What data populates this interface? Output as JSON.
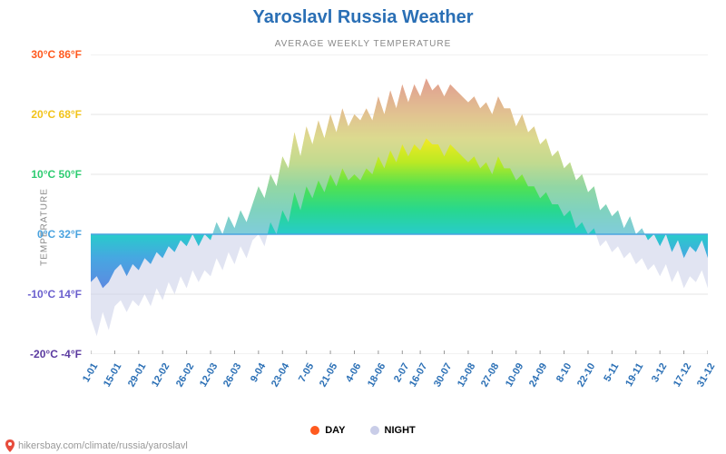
{
  "title": {
    "text": "Yaroslavl Russia Weather",
    "color": "#2a6fb5",
    "fontsize": 20,
    "fontweight": "600"
  },
  "subtitle": {
    "text": "AVERAGE WEEKLY TEMPERATURE",
    "color": "#888888",
    "fontsize": 10
  },
  "y_axis_title": {
    "text": "TEMPERATURE",
    "color": "#888888",
    "fontsize": 10
  },
  "attribution": {
    "text": "hikersbay.com/climate/russia/yaroslavl",
    "color": "#999999",
    "pin_color": "#e74c3c"
  },
  "legend": {
    "day": {
      "label": "DAY",
      "color": "#ff5a1f"
    },
    "night": {
      "label": "NIGHT",
      "color": "#c9cde8"
    }
  },
  "chart": {
    "type": "area",
    "background_color": "#ffffff",
    "gridline_color": "#e5e5e5",
    "zero_line_color": "#4aa3df",
    "night_fill_color": "#c9cde8",
    "y": {
      "min": -20,
      "max": 30,
      "tick_step": 10,
      "ticks": [
        {
          "c": 30,
          "label": "30°C 86°F",
          "color": "#ff5a1f"
        },
        {
          "c": 20,
          "label": "20°C 68°F",
          "color": "#f2c31b"
        },
        {
          "c": 10,
          "label": "10°C 50°F",
          "color": "#2ecc71"
        },
        {
          "c": 0,
          "label": "0°C 32°F",
          "color": "#4aa3df"
        },
        {
          "c": -10,
          "label": "-10°C 14°F",
          "color": "#6a5fce"
        },
        {
          "c": -20,
          "label": "-20°C -4°F",
          "color": "#5b3aa0"
        }
      ]
    },
    "x": {
      "labels": [
        "1-01",
        "15-01",
        "29-01",
        "12-02",
        "26-02",
        "12-03",
        "26-03",
        "9-04",
        "23-04",
        "7-05",
        "21-05",
        "4-06",
        "18-06",
        "2-07",
        "16-07",
        "30-07",
        "13-08",
        "27-08",
        "10-09",
        "24-09",
        "8-10",
        "22-10",
        "5-11",
        "19-11",
        "3-12",
        "17-12",
        "31-12"
      ],
      "label_color": "#2a6fb5",
      "label_fontsize": 11
    },
    "gradient_stops": [
      {
        "c": 28,
        "color": "#ff4d1a"
      },
      {
        "c": 24,
        "color": "#ff7a1f"
      },
      {
        "c": 20,
        "color": "#ffb21f"
      },
      {
        "c": 16,
        "color": "#f2e81b"
      },
      {
        "c": 12,
        "color": "#b8e81b"
      },
      {
        "c": 8,
        "color": "#4ae04a"
      },
      {
        "c": 4,
        "color": "#1fd68a"
      },
      {
        "c": 0,
        "color": "#1fc9c9"
      },
      {
        "c": -4,
        "color": "#3fa3e0"
      },
      {
        "c": -10,
        "color": "#5b7fe0"
      },
      {
        "c": -17,
        "color": "#5b3aa0"
      }
    ],
    "day": [
      -8,
      -7,
      -9,
      -8,
      -6,
      -5,
      -7,
      -5,
      -6,
      -4,
      -5,
      -3,
      -4,
      -2,
      -3,
      -1,
      -2,
      0,
      -2,
      0,
      -1,
      2,
      0,
      3,
      1,
      4,
      2,
      5,
      8,
      6,
      10,
      8,
      13,
      11,
      17,
      13,
      18,
      15,
      19,
      16,
      20,
      17,
      21,
      18,
      20,
      19,
      21,
      19,
      23,
      20,
      24,
      21,
      25,
      22,
      25,
      23,
      26,
      24,
      25,
      23,
      25,
      24,
      23,
      22,
      23,
      21,
      22,
      20,
      23,
      21,
      21,
      18,
      20,
      17,
      18,
      15,
      16,
      13,
      14,
      11,
      12,
      9,
      10,
      7,
      8,
      4,
      5,
      3,
      4,
      1,
      3,
      0,
      1,
      -1,
      0,
      -2,
      0,
      -3,
      -1,
      -4,
      -2,
      -3,
      -1,
      -4
    ],
    "night": [
      -14,
      -17,
      -13,
      -16,
      -12,
      -11,
      -13,
      -11,
      -12,
      -10,
      -12,
      -9,
      -11,
      -8,
      -10,
      -7,
      -9,
      -6,
      -8,
      -6,
      -7,
      -4,
      -6,
      -3,
      -5,
      -2,
      -4,
      -1,
      0,
      -2,
      2,
      0,
      4,
      2,
      7,
      4,
      8,
      6,
      9,
      7,
      10,
      8,
      11,
      9,
      10,
      9,
      11,
      10,
      13,
      11,
      14,
      12,
      15,
      13,
      15,
      14,
      16,
      15,
      15,
      13,
      15,
      14,
      13,
      12,
      13,
      11,
      12,
      10,
      13,
      11,
      11,
      9,
      10,
      8,
      8,
      6,
      7,
      5,
      5,
      3,
      4,
      1,
      2,
      0,
      1,
      -2,
      -1,
      -3,
      -2,
      -4,
      -3,
      -5,
      -4,
      -6,
      -5,
      -7,
      -5,
      -8,
      -6,
      -9,
      -7,
      -8,
      -6,
      -9
    ]
  }
}
